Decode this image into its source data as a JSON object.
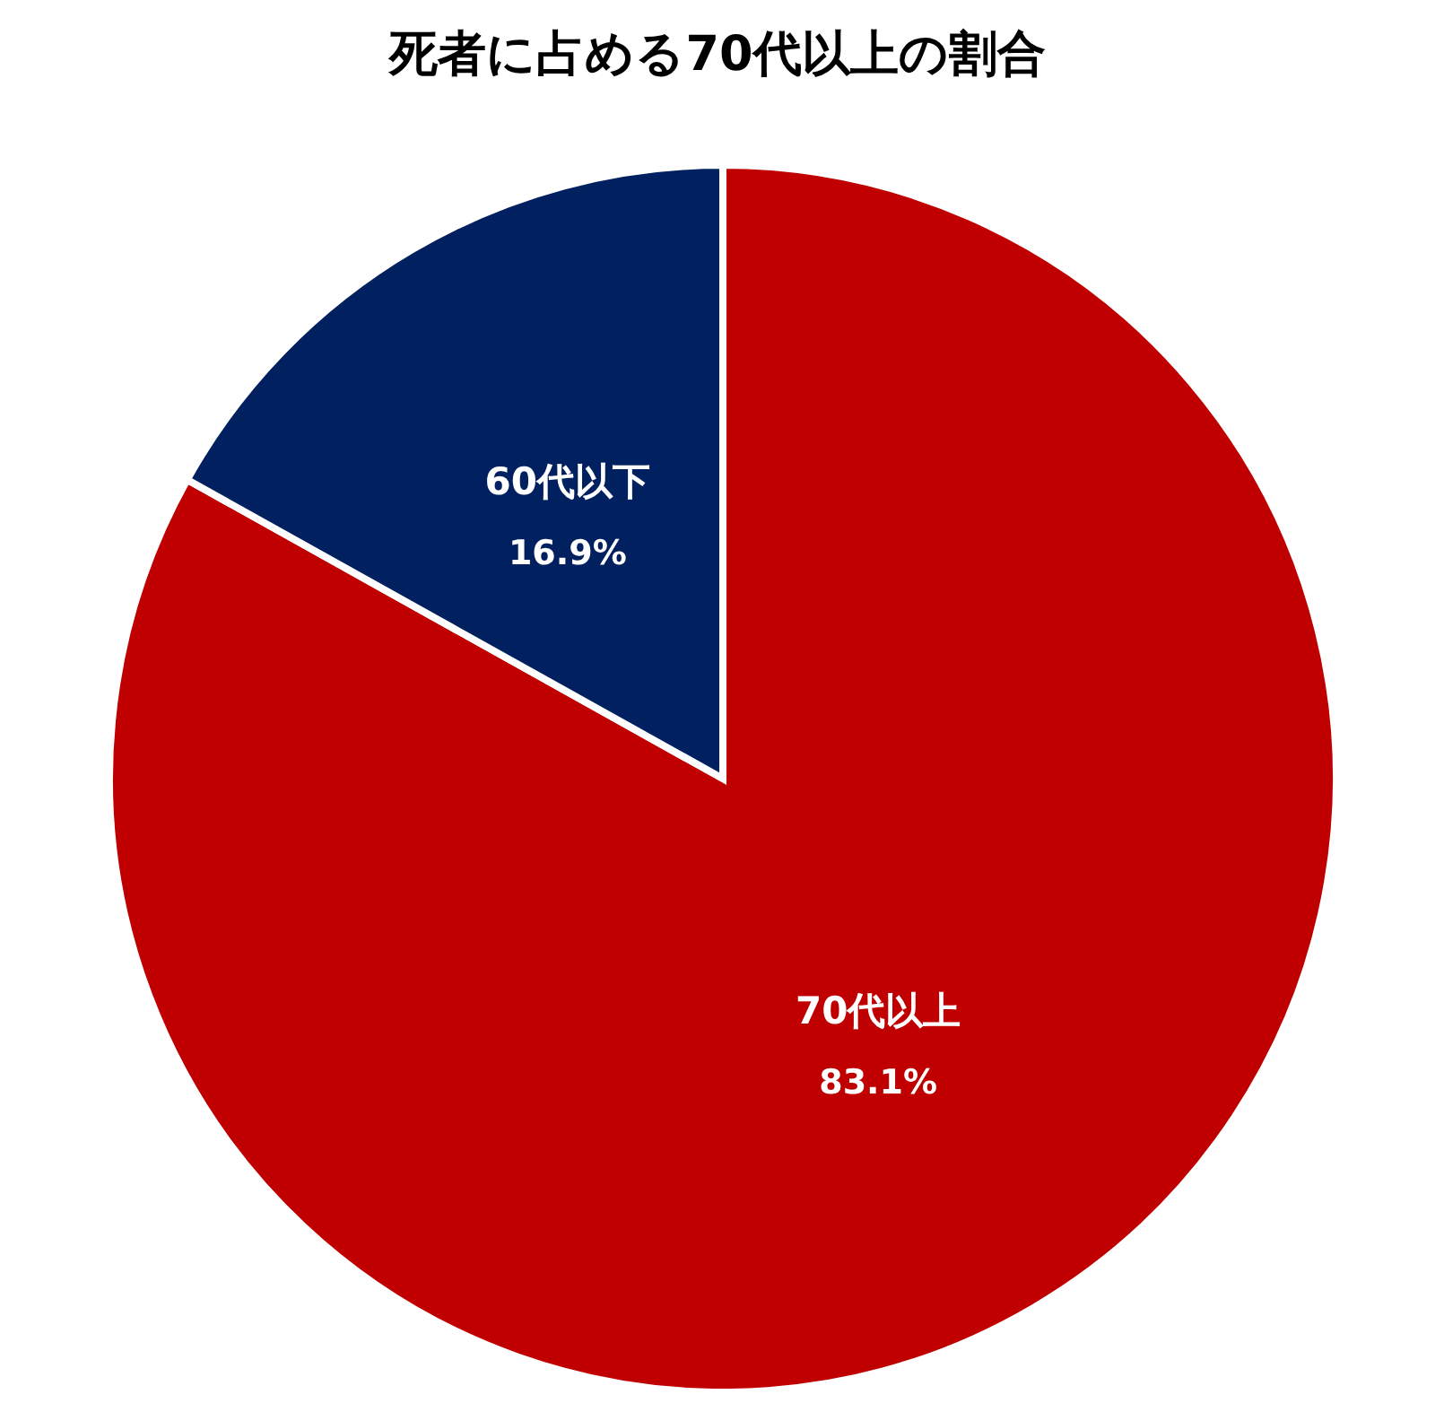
{
  "chart_data": {
    "type": "pie",
    "title": "死者に占める70代以上の割合",
    "categories": [
      "70代以上",
      "60代以下"
    ],
    "values": [
      83.1,
      16.9
    ],
    "colors": [
      "#c00000",
      "#002060"
    ],
    "value_labels": [
      "83.1%",
      "16.9%"
    ]
  }
}
